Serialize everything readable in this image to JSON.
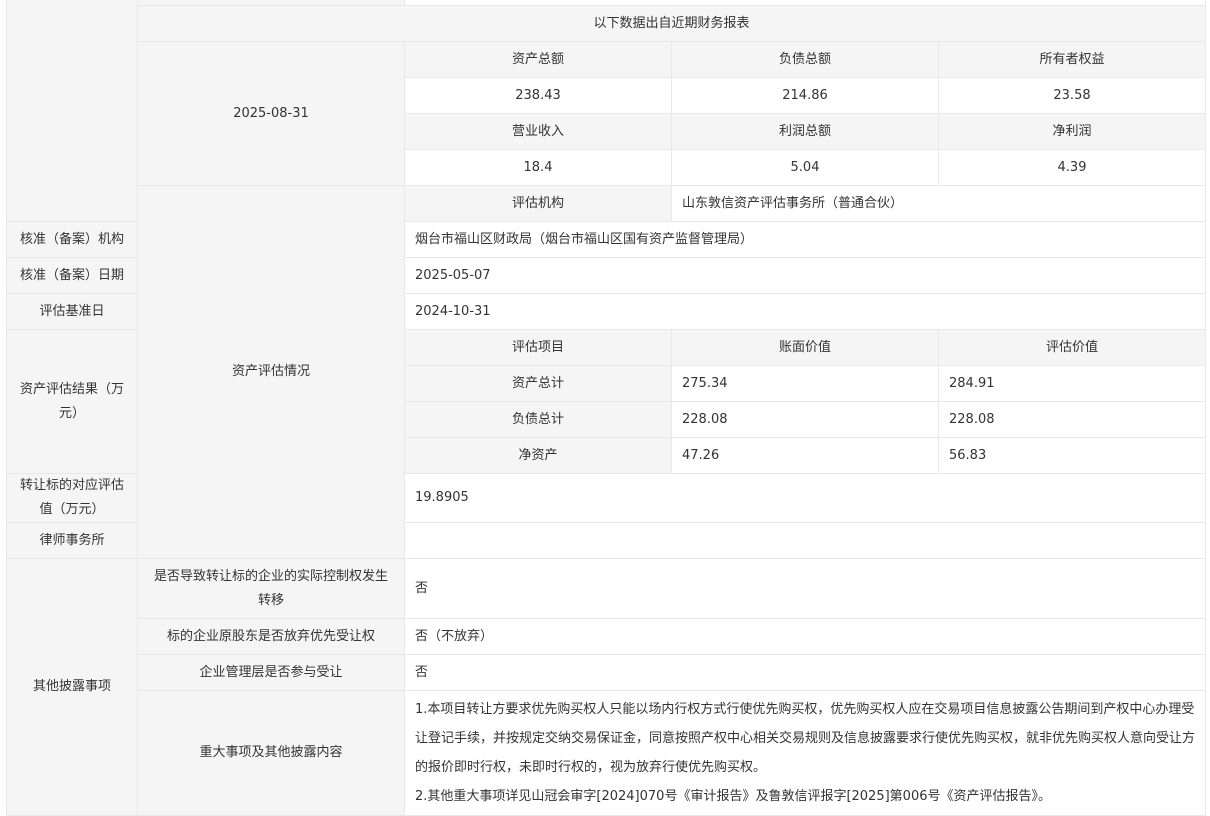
{
  "financial": {
    "header": "以下数据出自近期财务报表",
    "date": "2025-08-31",
    "row1_labels": [
      "资产总额",
      "负债总额",
      "所有者权益"
    ],
    "row1_values": [
      "238.43",
      "214.86",
      "23.58"
    ],
    "row2_labels": [
      "营业收入",
      "利润总额",
      "净利润"
    ],
    "row2_values": [
      "18.4",
      "5.04",
      "4.39"
    ]
  },
  "evaluation": {
    "section": "资产评估情况",
    "rows": [
      {
        "label": "评估机构",
        "value": "山东敦信资产评估事务所（普通合伙）"
      },
      {
        "label": "核准（备案）机构",
        "value": "烟台市福山区财政局（烟台市福山区国有资产监督管理局）"
      },
      {
        "label": "核准（备案）日期",
        "value": "2025-05-07"
      },
      {
        "label": "评估基准日",
        "value": "2024-10-31"
      }
    ],
    "result": {
      "label": "资产评估结果（万元）",
      "headers": [
        "评估项目",
        "账面价值",
        "评估价值"
      ],
      "items": [
        [
          "资产总计",
          "275.34",
          "284.91"
        ],
        [
          "负债总计",
          "228.08",
          "228.08"
        ],
        [
          "净资产",
          "47.26",
          "56.83"
        ]
      ]
    },
    "target_value": {
      "label": "转让标的对应评估值（万元）",
      "value": "19.8905"
    },
    "law_firm": {
      "label": "律师事务所",
      "value": ""
    }
  },
  "other": {
    "section": "其他披露事项",
    "rows": [
      {
        "label": "是否导致转让标的企业的实际控制权发生转移",
        "value": "否"
      },
      {
        "label": "标的企业原股东是否放弃优先受让权",
        "value": "否（不放弃）"
      },
      {
        "label": "企业管理层是否参与受让",
        "value": "否"
      }
    ],
    "major": {
      "label": "重大事项及其他披露内容",
      "lines": [
        "1.本项目转让方要求优先购买权人只能以场内行权方式行使优先购买权，优先购买权人应在交易项目信息披露公告期间到产权中心办理受让登记手续，并按规定交纳交易保证金，同意按照产权中心相关交易规则及信息披露要求行使优先购买权，就非优先购买权人意向受让方的报价即时行权，未即时行权的，视为放弃行使优先购买权。",
        "2.其他重大事项详见山冠会审字[2024]070号《审计报告》及鲁敦信评报字[2025]第006号《资产评估报告》。"
      ]
    }
  }
}
